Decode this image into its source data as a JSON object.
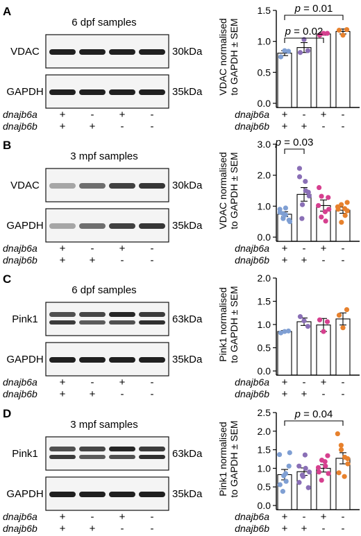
{
  "panels": [
    {
      "letter": "A",
      "sample_label": "6 dpf samples",
      "blot_rows": [
        {
          "protein": "VDAC",
          "size": "30kDa",
          "style": "crisp"
        },
        {
          "protein": "GAPDH",
          "size": "35kDa",
          "style": "crisp"
        }
      ],
      "genotype_rows": [
        {
          "gene": "dnajb6a",
          "values": [
            "+",
            "-",
            "+",
            "-"
          ]
        },
        {
          "gene": "dnajb6b",
          "values": [
            "+",
            "+",
            "-",
            "-"
          ]
        }
      ]
    },
    {
      "letter": "B",
      "sample_label": "3 mpf samples",
      "blot_rows": [
        {
          "protein": "VDAC",
          "size": "30kDa",
          "style": "faded"
        },
        {
          "protein": "GAPDH",
          "size": "35kDa",
          "style": "faded"
        }
      ],
      "genotype_rows": [
        {
          "gene": "dnajb6a",
          "values": [
            "+",
            "-",
            "+",
            "-"
          ]
        },
        {
          "gene": "dnajb6b",
          "values": [
            "+",
            "+",
            "-",
            "-"
          ]
        }
      ]
    },
    {
      "letter": "C",
      "sample_label": "6 dpf samples",
      "blot_rows": [
        {
          "protein": "Pink1",
          "size": "63kDa",
          "style": "double"
        },
        {
          "protein": "GAPDH",
          "size": "35kDa",
          "style": "crisp"
        }
      ],
      "genotype_rows": [
        {
          "gene": "dnajb6a",
          "values": [
            "+",
            "-",
            "+",
            "-"
          ]
        },
        {
          "gene": "dnajb6b",
          "values": [
            "+",
            "+",
            "-",
            "-"
          ]
        }
      ]
    },
    {
      "letter": "D",
      "sample_label": "3 mpf samples",
      "blot_rows": [
        {
          "protein": "Pink1",
          "size": "63kDa",
          "style": "double"
        },
        {
          "protein": "GAPDH",
          "size": "35kDa",
          "style": "crisp"
        }
      ],
      "genotype_rows": [
        {
          "gene": "dnajb6a",
          "values": [
            "+",
            "-",
            "+",
            "-"
          ]
        },
        {
          "gene": "dnajb6b",
          "values": [
            "+",
            "+",
            "-",
            "-"
          ]
        }
      ]
    }
  ],
  "colors": {
    "group_colors": [
      "#7f9fd3",
      "#8a6fb6",
      "#d6408f",
      "#e7812d"
    ],
    "bar_fill": "#ffffff",
    "axis": "#000000"
  },
  "chart_data": [
    {
      "panel": "A",
      "type": "bar",
      "categories": [
        "dnajb6a+/dnajb6b+",
        "dnajb6a-/dnajb6b+",
        "dnajb6a+/dnajb6b-",
        "dnajb6a-/dnajb6b-"
      ],
      "values": [
        0.81,
        0.9,
        1.12,
        1.16
      ],
      "sem": [
        0.04,
        0.08,
        0.02,
        0.04
      ],
      "points": [
        [
          0.75,
          0.85,
          0.84
        ],
        [
          0.82,
          1.03,
          0.85
        ],
        [
          1.1,
          1.13,
          1.13
        ],
        [
          1.18,
          1.1,
          1.19
        ]
      ],
      "ylabel": "VDAC normalised to GAPDH ± SEM",
      "ylim": [
        0,
        1.5
      ],
      "yticks": [
        "0.0",
        "0.5",
        "1.0",
        "1.5"
      ],
      "significance": [
        {
          "from": 0,
          "to": 3,
          "label": "p = 0.01"
        },
        {
          "from": 0,
          "to": 2,
          "label": "p = 0.02"
        }
      ],
      "grid": false
    },
    {
      "panel": "B",
      "type": "bar",
      "categories": [
        "dnajb6a+/dnajb6b+",
        "dnajb6a-/dnajb6b+",
        "dnajb6a+/dnajb6b-",
        "dnajb6a-/dnajb6b-"
      ],
      "values": [
        0.74,
        1.38,
        1.02,
        0.87
      ],
      "sem": [
        0.08,
        0.22,
        0.18,
        0.1
      ],
      "points": [
        [
          0.8,
          0.6,
          0.72,
          0.55,
          0.9,
          0.76,
          0.94,
          0.5
        ],
        [
          2.22,
          1.05,
          1.8,
          1.33,
          1.95,
          0.6,
          1.5,
          1.45
        ],
        [
          1.6,
          1.32,
          0.82,
          1.28,
          1.02,
          0.65,
          0.52,
          0.9
        ],
        [
          0.98,
          1.05,
          0.7,
          1.12,
          0.9,
          0.48,
          0.92,
          0.85
        ]
      ],
      "ylabel": "VDAC normalised to GAPDH ± SEM",
      "ylim": [
        0,
        3
      ],
      "yticks": [
        "0.0",
        "1.0",
        "2.0",
        "3.0"
      ],
      "significance": [
        {
          "from": 0,
          "to": 1,
          "label": "p = 0.03"
        }
      ],
      "grid": false
    },
    {
      "panel": "C",
      "type": "bar",
      "categories": [
        "dnajb6a+/dnajb6b+",
        "dnajb6a-/dnajb6b+",
        "dnajb6a+/dnajb6b-",
        "dnajb6a-/dnajb6b-"
      ],
      "values": [
        0.85,
        1.06,
        0.99,
        1.12
      ],
      "sem": [
        0.02,
        0.08,
        0.14,
        0.13
      ],
      "points": [
        [
          0.82,
          0.85,
          0.86
        ],
        [
          1.17,
          1.08,
          0.96
        ],
        [
          1.1,
          0.85,
          1.06
        ],
        [
          1.2,
          0.93,
          1.32
        ]
      ],
      "ylabel": "Pink1 normalised to GAPDH ± SEM",
      "ylim": [
        0,
        2
      ],
      "yticks": [
        "0.0",
        "0.5",
        "1.0",
        "1.5",
        "2.0"
      ],
      "significance": [],
      "grid": false
    },
    {
      "panel": "D",
      "type": "bar",
      "categories": [
        "dnajb6a+/dnajb6b+",
        "dnajb6a-/dnajb6b+",
        "dnajb6a+/dnajb6b-",
        "dnajb6a-/dnajb6b-"
      ],
      "values": [
        0.83,
        0.91,
        1.0,
        1.27
      ],
      "sem": [
        0.14,
        0.1,
        0.1,
        0.15
      ],
      "points": [
        [
          1.37,
          0.8,
          0.65,
          1.06,
          0.56,
          0.38,
          0.86,
          1.42
        ],
        [
          0.62,
          0.82,
          1.36,
          0.9,
          1.06,
          0.78,
          1.0,
          0.48
        ],
        [
          0.9,
          1.22,
          1.06,
          0.86,
          1.02,
          0.68,
          1.18,
          1.34
        ],
        [
          1.93,
          1.5,
          1.3,
          1.12,
          0.88,
          1.62,
          0.78,
          1.26
        ]
      ],
      "ylabel": "Pink1 normalised to GAPDH ± SEM",
      "ylim": [
        0,
        2.5
      ],
      "yticks": [
        "0.0",
        "0.5",
        "1.0",
        "1.5",
        "2.0",
        "2.5"
      ],
      "significance": [
        {
          "from": 0,
          "to": 3,
          "label": "p = 0.04"
        }
      ],
      "grid": false
    }
  ]
}
